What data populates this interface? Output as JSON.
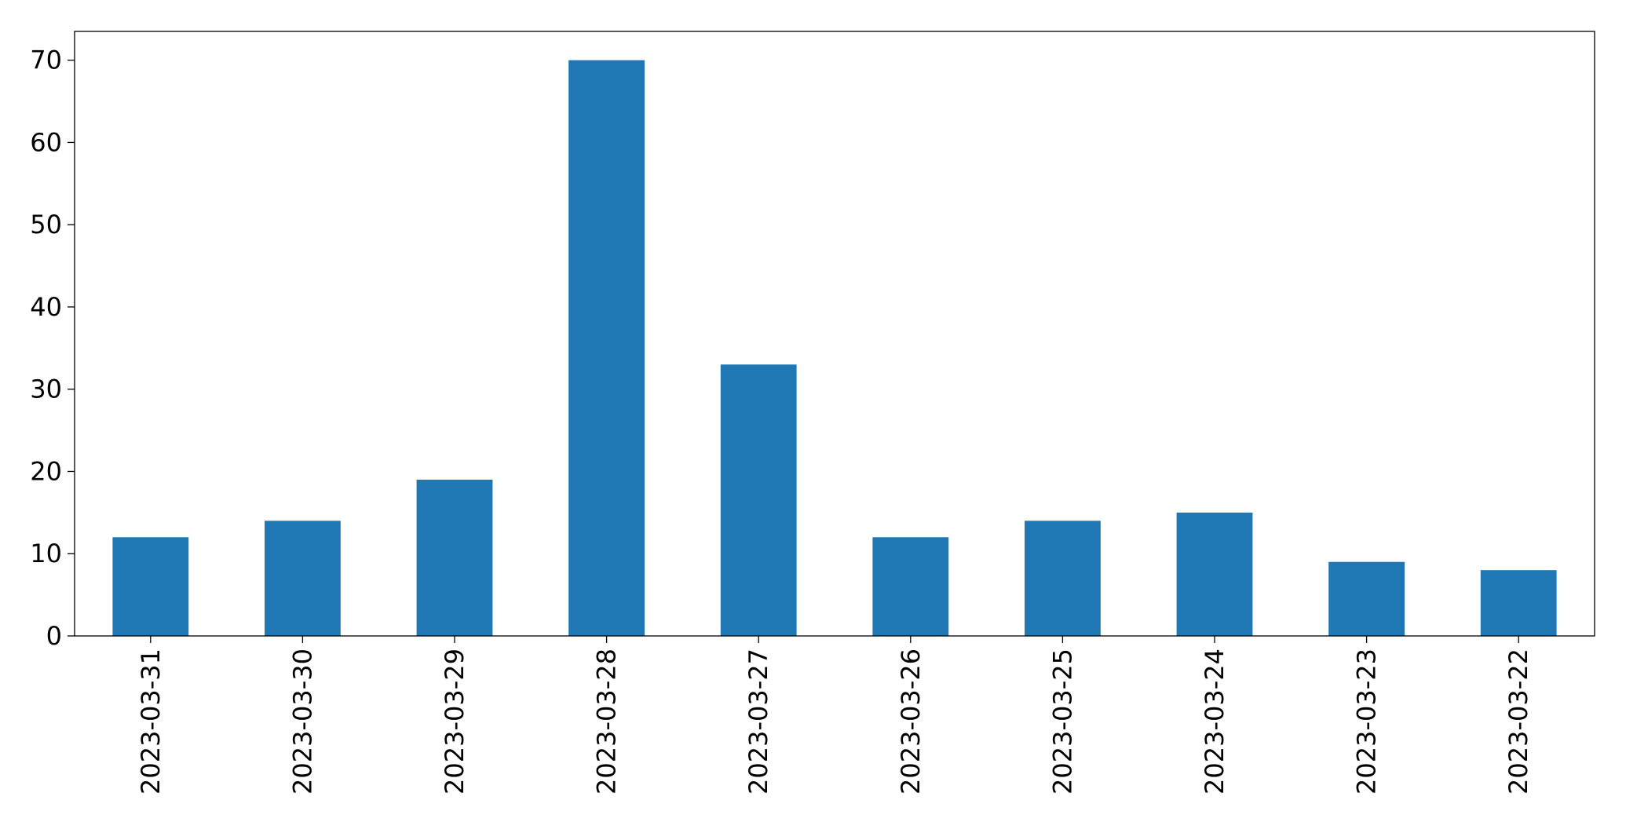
{
  "chart_data": {
    "type": "bar",
    "categories": [
      "2023-03-31",
      "2023-03-30",
      "2023-03-29",
      "2023-03-28",
      "2023-03-27",
      "2023-03-26",
      "2023-03-25",
      "2023-03-24",
      "2023-03-23",
      "2023-03-22"
    ],
    "values": [
      12,
      14,
      19,
      70,
      33,
      12,
      14,
      15,
      9,
      8
    ],
    "color": "#1f77b4",
    "ylim": [
      0,
      73.5
    ],
    "yticks": [
      0,
      10,
      20,
      30,
      40,
      50,
      60,
      70
    ],
    "grid": false
  }
}
